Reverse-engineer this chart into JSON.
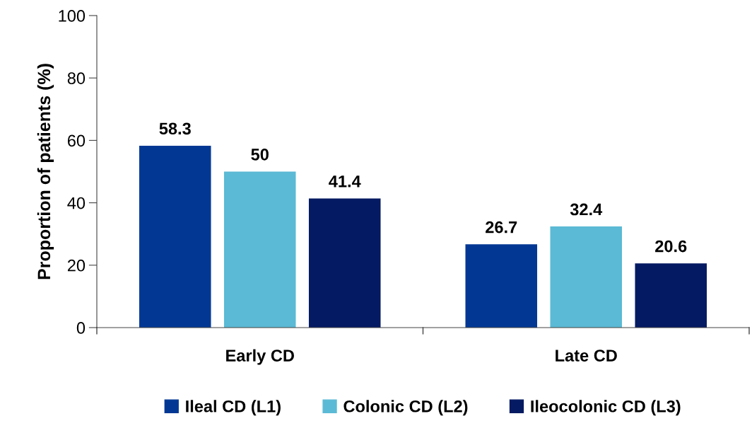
{
  "chart_data": {
    "type": "bar",
    "ylabel": "Proportion of patients (%)",
    "categories": [
      "Early CD",
      "Late CD"
    ],
    "series": [
      {
        "name": "Ileal CD (L1)",
        "color": "#023894",
        "values": [
          58.3,
          26.7
        ]
      },
      {
        "name": "Colonic CD (L2)",
        "color": "#5bbad5",
        "values": [
          50,
          32.4
        ]
      },
      {
        "name": "Ileocolonic CD (L3)",
        "color": "#041a62",
        "values": [
          41.4,
          20.6
        ]
      }
    ],
    "ylim": [
      0,
      100
    ],
    "yticks": [
      0,
      20,
      40,
      60,
      80,
      100
    ],
    "grid": false,
    "legend": "bottom",
    "data_labels": true
  }
}
